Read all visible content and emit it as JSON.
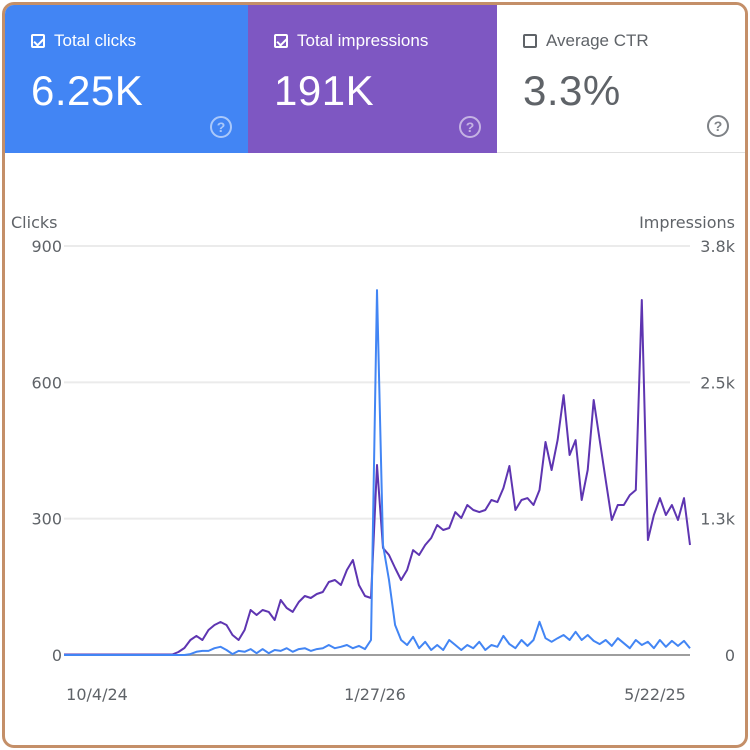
{
  "metrics": [
    {
      "label": "Total clicks",
      "value": "6.25K",
      "checked": true,
      "color": "#4285f4"
    },
    {
      "label": "Total impressions",
      "value": "191K",
      "checked": true,
      "color": "#7e57c2"
    },
    {
      "label": "Average CTR",
      "value": "3.3%",
      "checked": false,
      "color": "#ffffff"
    }
  ],
  "help_icon": "?",
  "chart_data": {
    "type": "line",
    "left_axis": {
      "label": "Clicks",
      "ticks": [
        "0",
        "300",
        "600",
        "900"
      ],
      "range": [
        0,
        900
      ]
    },
    "right_axis": {
      "label": "Impressions",
      "ticks": [
        "0",
        "1.3k",
        "2.5k",
        "3.8k"
      ],
      "range": [
        0,
        3800
      ]
    },
    "x_tick_labels": [
      "10/4/24",
      "1/27/26",
      "5/22/25"
    ],
    "grid": true,
    "series": [
      {
        "name": "Clicks",
        "axis": "left",
        "color": "#4285f4",
        "values": [
          0,
          0,
          0,
          0,
          0,
          0,
          0,
          0,
          0,
          0,
          0,
          0,
          0,
          0,
          0,
          0,
          0,
          0,
          0,
          0,
          0,
          2,
          7,
          9,
          9,
          15,
          18,
          11,
          2,
          9,
          7,
          13,
          4,
          13,
          4,
          11,
          9,
          15,
          7,
          13,
          15,
          9,
          13,
          15,
          22,
          15,
          18,
          22,
          15,
          20,
          13,
          33,
          803,
          242,
          165,
          66,
          33,
          22,
          40,
          15,
          29,
          11,
          22,
          11,
          33,
          22,
          11,
          22,
          15,
          29,
          11,
          22,
          18,
          42,
          24,
          15,
          33,
          20,
          33,
          73,
          37,
          29,
          37,
          44,
          33,
          51,
          33,
          44,
          31,
          24,
          33,
          20,
          37,
          26,
          15,
          33,
          22,
          29,
          15,
          33,
          18,
          31,
          20,
          31,
          15
        ]
      },
      {
        "name": "Impressions",
        "axis": "right",
        "color": "#5e35b1",
        "values": [
          5,
          5,
          5,
          5,
          5,
          5,
          5,
          5,
          5,
          5,
          5,
          5,
          5,
          5,
          5,
          5,
          5,
          5,
          5,
          28,
          65,
          139,
          177,
          139,
          232,
          279,
          307,
          279,
          186,
          139,
          232,
          418,
          372,
          418,
          400,
          325,
          511,
          437,
          400,
          492,
          548,
          530,
          567,
          585,
          678,
          697,
          650,
          790,
          883,
          650,
          548,
          530,
          1765,
          994,
          929,
          808,
          697,
          790,
          975,
          929,
          1022,
          1087,
          1208,
          1161,
          1180,
          1328,
          1273,
          1394,
          1347,
          1328,
          1347,
          1440,
          1421,
          1551,
          1756,
          1347,
          1440,
          1458,
          1394,
          1533,
          1979,
          1719,
          1997,
          2415,
          1858,
          1997,
          1440,
          1719,
          2369,
          1997,
          1626,
          1254,
          1394,
          1394,
          1486,
          1533,
          3298,
          1068,
          1301,
          1458,
          1301,
          1394,
          1254,
          1458,
          1022
        ]
      }
    ]
  }
}
